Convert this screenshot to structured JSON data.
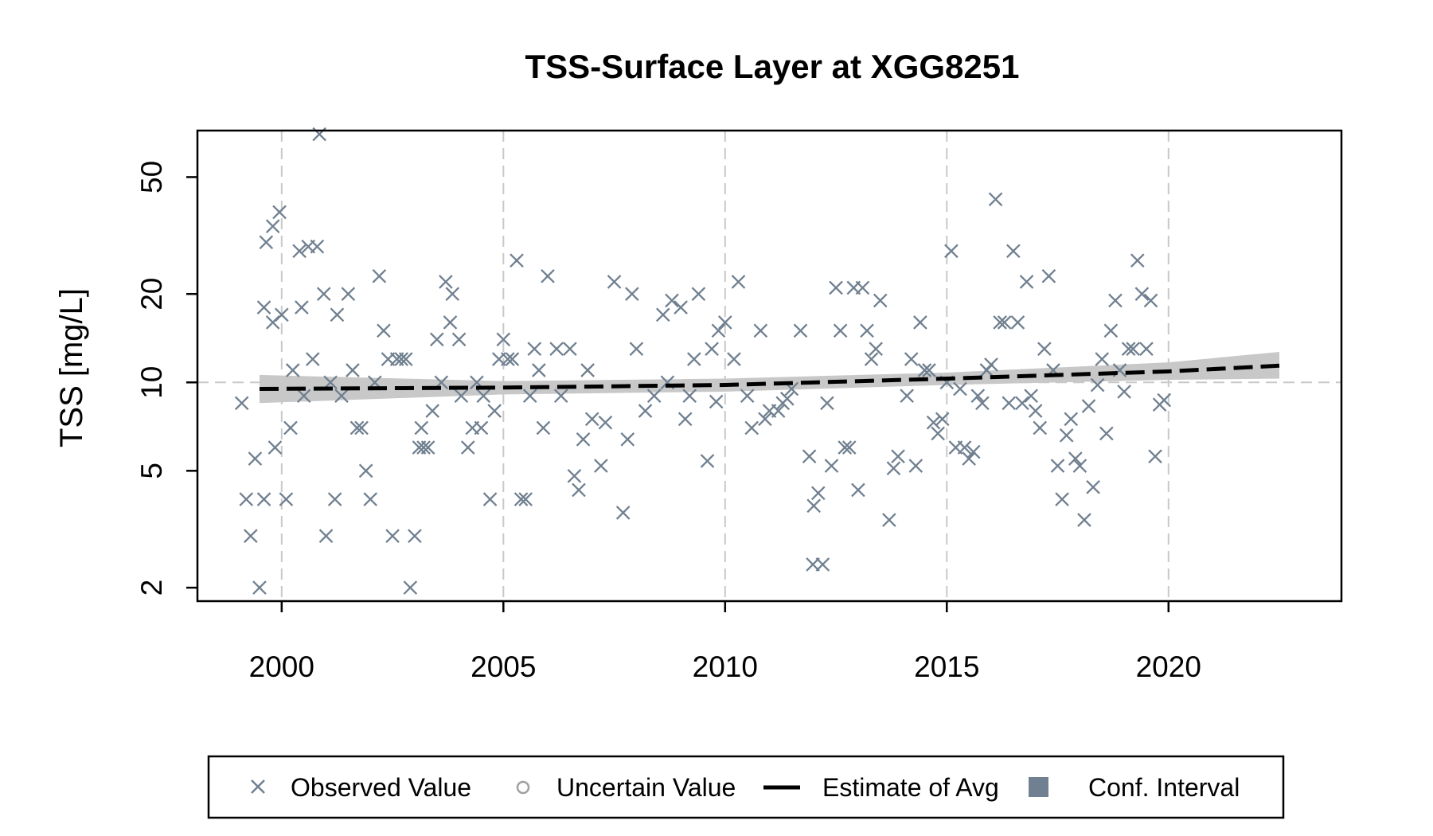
{
  "chart_data": {
    "type": "scatter",
    "title": "TSS-Surface Layer at XGG8251",
    "xlabel": "",
    "ylabel": "TSS [mg/L]",
    "y_scale": "log",
    "xlim": [
      1998.1,
      2023.9
    ],
    "ylim": [
      1.8,
      72
    ],
    "x_ticks": [
      2000,
      2005,
      2010,
      2015,
      2020
    ],
    "x_tick_labels": [
      "2000",
      "2005",
      "2010",
      "2015",
      "2020"
    ],
    "y_ticks": [
      2,
      5,
      10,
      20,
      50
    ],
    "y_tick_labels": [
      "2",
      "5",
      "10",
      "20",
      "50"
    ],
    "grid": "dashed at x ticks and y=10",
    "legend_position": "bottom",
    "colors": {
      "observed": "#708090",
      "uncertain": "#a0a0a0",
      "estimate": "#000000",
      "ci_band": "#c8c8c8",
      "legend_ci": "#708090"
    },
    "series": [
      {
        "name": "Observed Value",
        "marker": "x",
        "points": [
          [
            1999.1,
            8.5
          ],
          [
            1999.2,
            4.0
          ],
          [
            1999.3,
            3.0
          ],
          [
            1999.4,
            5.5
          ],
          [
            1999.5,
            2.0
          ],
          [
            1999.6,
            4.0
          ],
          [
            1999.6,
            18
          ],
          [
            1999.65,
            30
          ],
          [
            1999.8,
            34
          ],
          [
            1999.8,
            16
          ],
          [
            1999.85,
            6.0
          ],
          [
            1999.95,
            38
          ],
          [
            2000.0,
            17
          ],
          [
            2000.1,
            4.0
          ],
          [
            2000.2,
            7.0
          ],
          [
            2000.25,
            11
          ],
          [
            2000.4,
            28
          ],
          [
            2000.45,
            18
          ],
          [
            2000.5,
            9.0
          ],
          [
            2000.6,
            29
          ],
          [
            2000.7,
            12
          ],
          [
            2000.8,
            29
          ],
          [
            2000.85,
            70
          ],
          [
            2000.95,
            20
          ],
          [
            2001.0,
            3.0
          ],
          [
            2001.1,
            10
          ],
          [
            2001.2,
            4.0
          ],
          [
            2001.25,
            17
          ],
          [
            2001.35,
            9.0
          ],
          [
            2001.5,
            20
          ],
          [
            2001.6,
            11
          ],
          [
            2001.7,
            7.0
          ],
          [
            2001.8,
            7.0
          ],
          [
            2001.9,
            5.0
          ],
          [
            2002.0,
            4.0
          ],
          [
            2002.1,
            10
          ],
          [
            2002.2,
            23
          ],
          [
            2002.3,
            15
          ],
          [
            2002.4,
            12
          ],
          [
            2002.5,
            3.0
          ],
          [
            2002.6,
            12
          ],
          [
            2002.7,
            12
          ],
          [
            2002.8,
            12
          ],
          [
            2002.9,
            2.0
          ],
          [
            2003.0,
            3.0
          ],
          [
            2003.1,
            6.0
          ],
          [
            2003.15,
            7.0
          ],
          [
            2003.2,
            6.0
          ],
          [
            2003.3,
            6.0
          ],
          [
            2003.4,
            8.0
          ],
          [
            2003.5,
            14
          ],
          [
            2003.6,
            10
          ],
          [
            2003.7,
            22
          ],
          [
            2003.8,
            16
          ],
          [
            2003.85,
            20
          ],
          [
            2004.0,
            14
          ],
          [
            2004.05,
            9.0
          ],
          [
            2004.2,
            6.0
          ],
          [
            2004.3,
            7.0
          ],
          [
            2004.4,
            10
          ],
          [
            2004.5,
            7.0
          ],
          [
            2004.55,
            9.0
          ],
          [
            2004.7,
            4.0
          ],
          [
            2004.8,
            8.0
          ],
          [
            2004.9,
            12
          ],
          [
            2005.0,
            14
          ],
          [
            2005.1,
            12
          ],
          [
            2005.2,
            12
          ],
          [
            2005.3,
            26
          ],
          [
            2005.4,
            4.0
          ],
          [
            2005.5,
            4.0
          ],
          [
            2005.6,
            9.0
          ],
          [
            2005.7,
            13
          ],
          [
            2005.8,
            11
          ],
          [
            2005.9,
            7.0
          ],
          [
            2006.0,
            23
          ],
          [
            2006.2,
            13
          ],
          [
            2006.3,
            9.0
          ],
          [
            2006.5,
            13
          ],
          [
            2006.6,
            4.8
          ],
          [
            2006.7,
            4.3
          ],
          [
            2006.8,
            6.4
          ],
          [
            2006.9,
            11
          ],
          [
            2007.0,
            7.5
          ],
          [
            2007.2,
            5.2
          ],
          [
            2007.3,
            7.3
          ],
          [
            2007.5,
            22
          ],
          [
            2007.7,
            3.6
          ],
          [
            2007.8,
            6.4
          ],
          [
            2007.9,
            20
          ],
          [
            2008.0,
            13
          ],
          [
            2008.2,
            8.0
          ],
          [
            2008.4,
            9.0
          ],
          [
            2008.6,
            17
          ],
          [
            2008.7,
            10
          ],
          [
            2008.8,
            19
          ],
          [
            2009.0,
            18
          ],
          [
            2009.1,
            7.5
          ],
          [
            2009.2,
            9.0
          ],
          [
            2009.3,
            12
          ],
          [
            2009.4,
            20
          ],
          [
            2009.6,
            5.4
          ],
          [
            2009.7,
            13
          ],
          [
            2009.8,
            8.6
          ],
          [
            2009.85,
            15
          ],
          [
            2010.0,
            16
          ],
          [
            2010.2,
            12
          ],
          [
            2010.3,
            22
          ],
          [
            2010.5,
            9.0
          ],
          [
            2010.6,
            7.0
          ],
          [
            2010.8,
            15
          ],
          [
            2010.9,
            7.5
          ],
          [
            2011.0,
            8.0
          ],
          [
            2011.2,
            8.0
          ],
          [
            2011.3,
            8.5
          ],
          [
            2011.4,
            8.8
          ],
          [
            2011.5,
            9.5
          ],
          [
            2011.7,
            15
          ],
          [
            2011.9,
            5.6
          ],
          [
            2011.98,
            2.4
          ],
          [
            2012.0,
            3.8
          ],
          [
            2012.1,
            4.2
          ],
          [
            2012.2,
            2.4
          ],
          [
            2012.3,
            8.5
          ],
          [
            2012.4,
            5.2
          ],
          [
            2012.5,
            21
          ],
          [
            2012.6,
            15
          ],
          [
            2012.7,
            6.0
          ],
          [
            2012.8,
            6.0
          ],
          [
            2012.9,
            21
          ],
          [
            2013.0,
            4.3
          ],
          [
            2013.1,
            21
          ],
          [
            2013.2,
            15
          ],
          [
            2013.3,
            12
          ],
          [
            2013.4,
            13
          ],
          [
            2013.5,
            19
          ],
          [
            2013.7,
            3.4
          ],
          [
            2013.8,
            5.1
          ],
          [
            2013.9,
            5.6
          ],
          [
            2014.1,
            9.0
          ],
          [
            2014.2,
            12
          ],
          [
            2014.3,
            5.2
          ],
          [
            2014.4,
            16
          ],
          [
            2014.5,
            11
          ],
          [
            2014.6,
            11
          ],
          [
            2014.7,
            7.3
          ],
          [
            2014.8,
            6.7
          ],
          [
            2014.9,
            7.5
          ],
          [
            2015.0,
            10
          ],
          [
            2015.1,
            28
          ],
          [
            2015.2,
            6.0
          ],
          [
            2015.3,
            9.5
          ],
          [
            2015.4,
            6.0
          ],
          [
            2015.5,
            5.5
          ],
          [
            2015.6,
            5.8
          ],
          [
            2015.7,
            9.0
          ],
          [
            2015.8,
            8.5
          ],
          [
            2015.9,
            11
          ],
          [
            2016.0,
            11.5
          ],
          [
            2016.1,
            42
          ],
          [
            2016.2,
            16
          ],
          [
            2016.3,
            16
          ],
          [
            2016.4,
            8.5
          ],
          [
            2016.5,
            28
          ],
          [
            2016.6,
            16
          ],
          [
            2016.7,
            8.5
          ],
          [
            2016.8,
            22
          ],
          [
            2016.9,
            9.0
          ],
          [
            2017.0,
            8.0
          ],
          [
            2017.1,
            7.0
          ],
          [
            2017.2,
            13
          ],
          [
            2017.3,
            23
          ],
          [
            2017.4,
            11
          ],
          [
            2017.5,
            5.2
          ],
          [
            2017.6,
            4.0
          ],
          [
            2017.7,
            6.6
          ],
          [
            2017.8,
            7.5
          ],
          [
            2017.9,
            5.5
          ],
          [
            2018.0,
            5.2
          ],
          [
            2018.1,
            3.4
          ],
          [
            2018.2,
            8.3
          ],
          [
            2018.3,
            4.4
          ],
          [
            2018.4,
            9.8
          ],
          [
            2018.5,
            12
          ],
          [
            2018.6,
            6.7
          ],
          [
            2018.7,
            15
          ],
          [
            2018.8,
            19
          ],
          [
            2018.9,
            11
          ],
          [
            2019.0,
            9.3
          ],
          [
            2019.1,
            13
          ],
          [
            2019.2,
            13
          ],
          [
            2019.3,
            26
          ],
          [
            2019.4,
            20
          ],
          [
            2019.5,
            13
          ],
          [
            2019.6,
            19
          ],
          [
            2019.7,
            5.6
          ],
          [
            2019.8,
            8.4
          ],
          [
            2019.9,
            8.7
          ]
        ]
      },
      {
        "name": "Uncertain Value",
        "marker": "o",
        "points": []
      },
      {
        "name": "Estimate of Avg",
        "marker": "dashed-line",
        "points": [
          [
            1999.5,
            9.5
          ],
          [
            2005,
            9.6
          ],
          [
            2010,
            9.8
          ],
          [
            2015,
            10.3
          ],
          [
            2020,
            10.9
          ],
          [
            2022.5,
            11.4
          ]
        ]
      },
      {
        "name": "Conf. Interval",
        "marker": "band",
        "lower": [
          [
            1999.5,
            8.5
          ],
          [
            2005,
            9.1
          ],
          [
            2010,
            9.3
          ],
          [
            2015,
            9.8
          ],
          [
            2020,
            10.2
          ],
          [
            2022.5,
            10.3
          ]
        ],
        "upper": [
          [
            1999.5,
            10.6
          ],
          [
            2005,
            10.1
          ],
          [
            2010,
            10.3
          ],
          [
            2015,
            10.8
          ],
          [
            2020,
            11.7
          ],
          [
            2022.5,
            12.7
          ]
        ]
      }
    ],
    "legend": [
      "Observed Value",
      "Uncertain Value",
      "Estimate of Avg",
      "Conf. Interval"
    ]
  }
}
